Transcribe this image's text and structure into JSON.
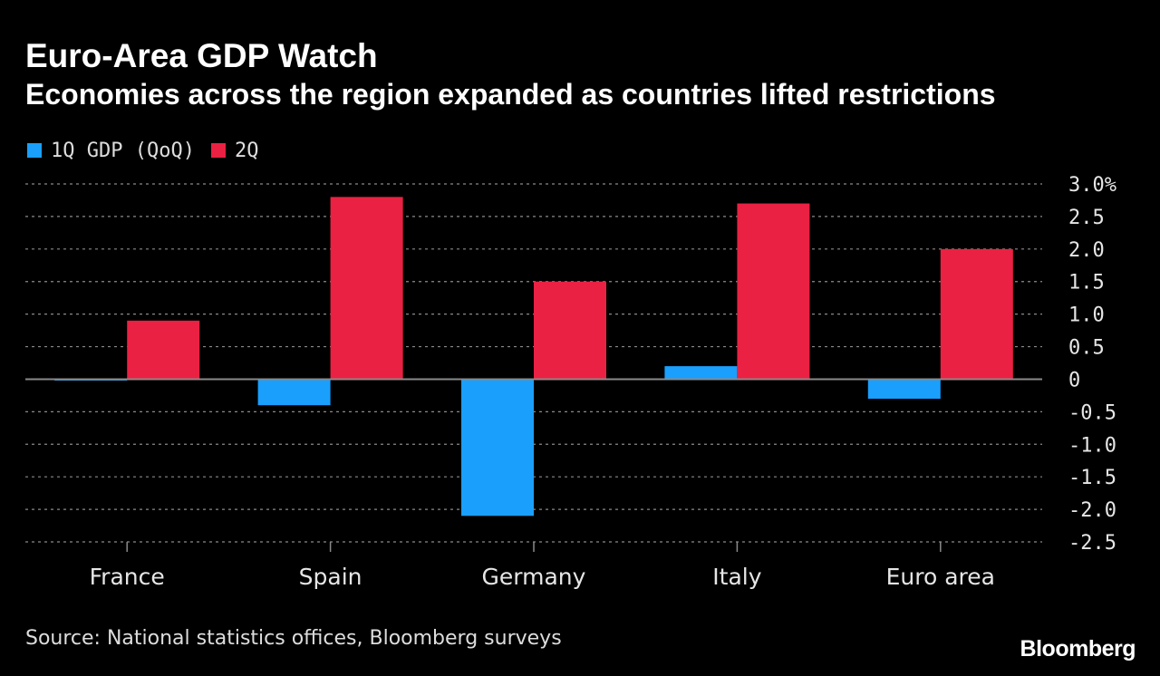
{
  "header": {
    "title": "Euro-Area GDP Watch",
    "subtitle": "Economies across the region expanded as countries lifted restrictions"
  },
  "legend": {
    "items": [
      {
        "label": "1Q GDP (QoQ)",
        "color": "#1a9ffc"
      },
      {
        "label": "2Q",
        "color": "#ea2142"
      }
    ]
  },
  "footer": {
    "source": "Source: National statistics offices, Bloomberg surveys",
    "brand": "Bloomberg"
  },
  "chart_data": {
    "type": "bar",
    "title": "Euro-Area GDP Watch",
    "subtitle": "Economies across the region expanded as countries lifted restrictions",
    "categories": [
      "France",
      "Spain",
      "Germany",
      "Italy",
      "Euro area"
    ],
    "series": [
      {
        "name": "1Q GDP (QoQ)",
        "color": "#1a9ffc",
        "values": [
          -0.02,
          -0.4,
          -2.1,
          0.2,
          -0.3
        ]
      },
      {
        "name": "2Q",
        "color": "#ea2142",
        "values": [
          0.9,
          2.8,
          1.5,
          2.7,
          2.0
        ]
      }
    ],
    "ylim": [
      -2.5,
      3.0
    ],
    "yticks": [
      3.0,
      2.5,
      2.0,
      1.5,
      1.0,
      0.5,
      0,
      -0.5,
      -1.0,
      -1.5,
      -2.0,
      -2.5
    ],
    "ytick_labels": [
      "3.0%",
      "2.5",
      "2.0",
      "1.5",
      "1.0",
      "0.5",
      "0",
      "-0.5",
      "-1.0",
      "-1.5",
      "-2.0",
      "-2.5"
    ],
    "y_axis_side": "right",
    "grid": true,
    "xlabel": "",
    "ylabel": ""
  }
}
